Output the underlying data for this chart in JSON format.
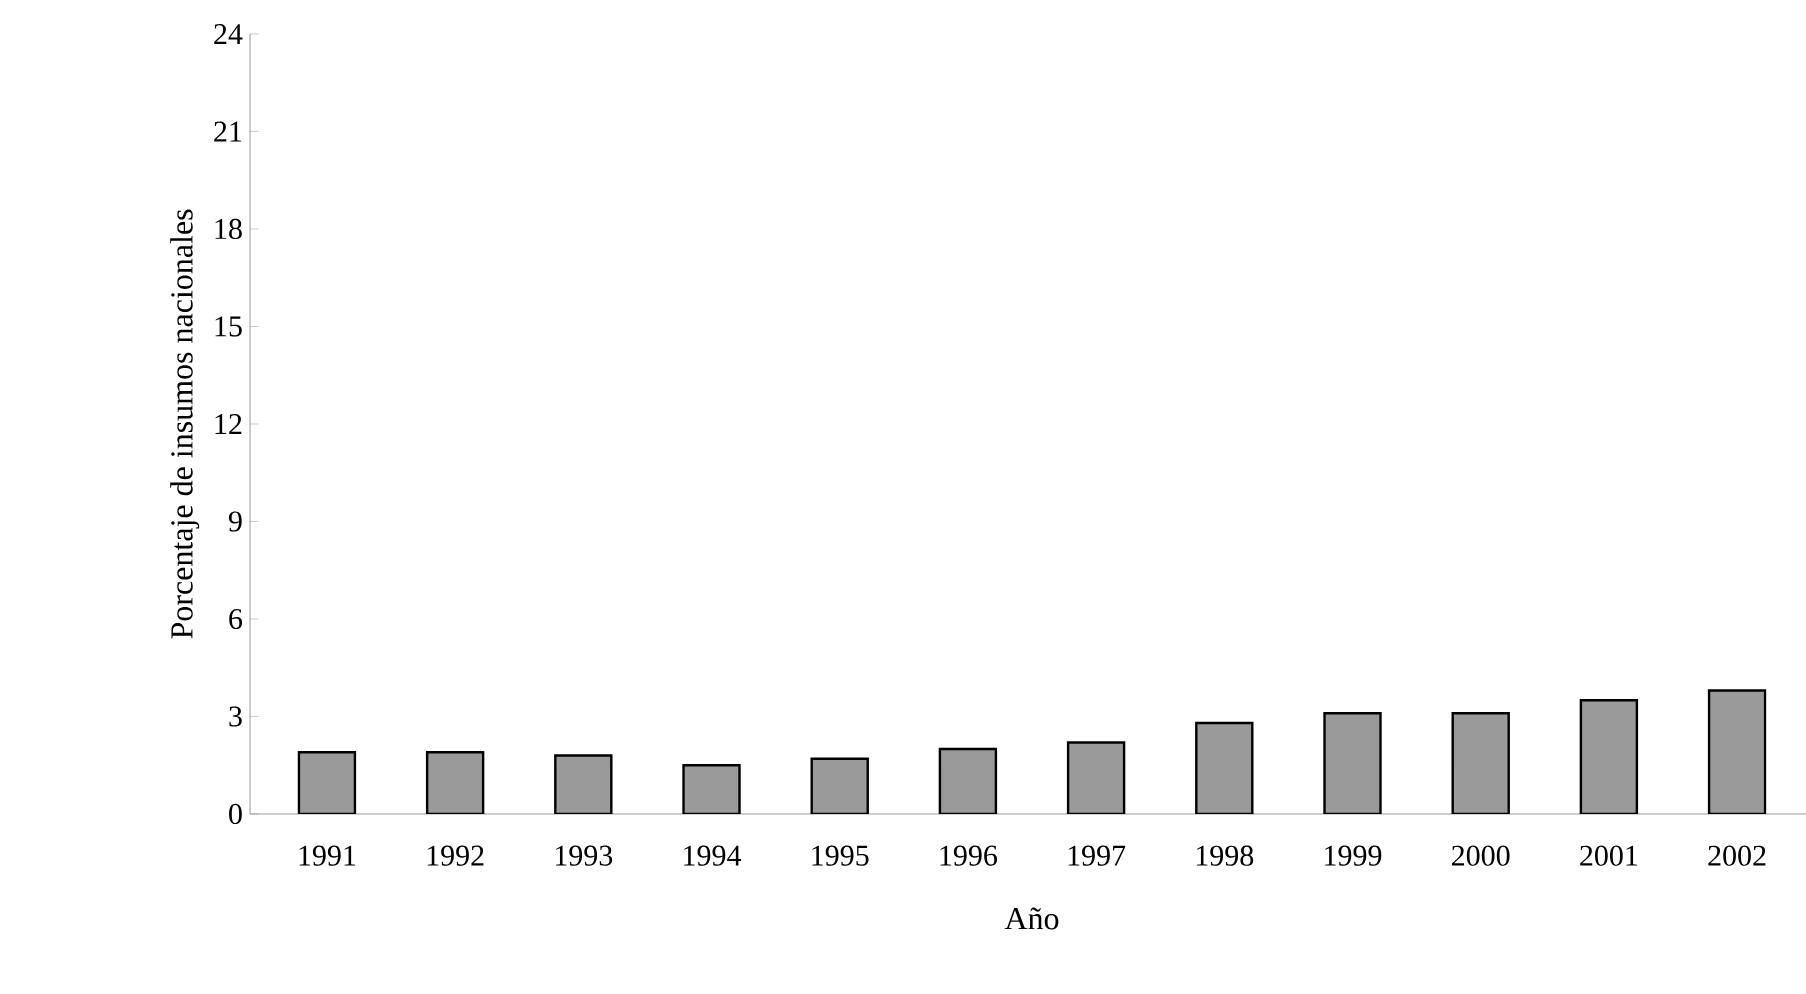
{
  "chart_data": {
    "type": "bar",
    "xlabel": "Año",
    "ylabel": "Porcentaje de insumos nacionales",
    "categories": [
      "1991",
      "1992",
      "1993",
      "1994",
      "1995",
      "1996",
      "1997",
      "1998",
      "1999",
      "2000",
      "2001",
      "2002"
    ],
    "values": [
      1.9,
      1.9,
      1.8,
      1.5,
      1.7,
      2.0,
      2.2,
      2.8,
      3.1,
      3.1,
      3.5,
      3.8
    ],
    "color": "#9a9a9a",
    "ylim": [
      0,
      24
    ],
    "yticks": [
      0,
      3,
      6,
      9,
      12,
      15,
      18,
      21,
      24
    ],
    "grid": false
  }
}
